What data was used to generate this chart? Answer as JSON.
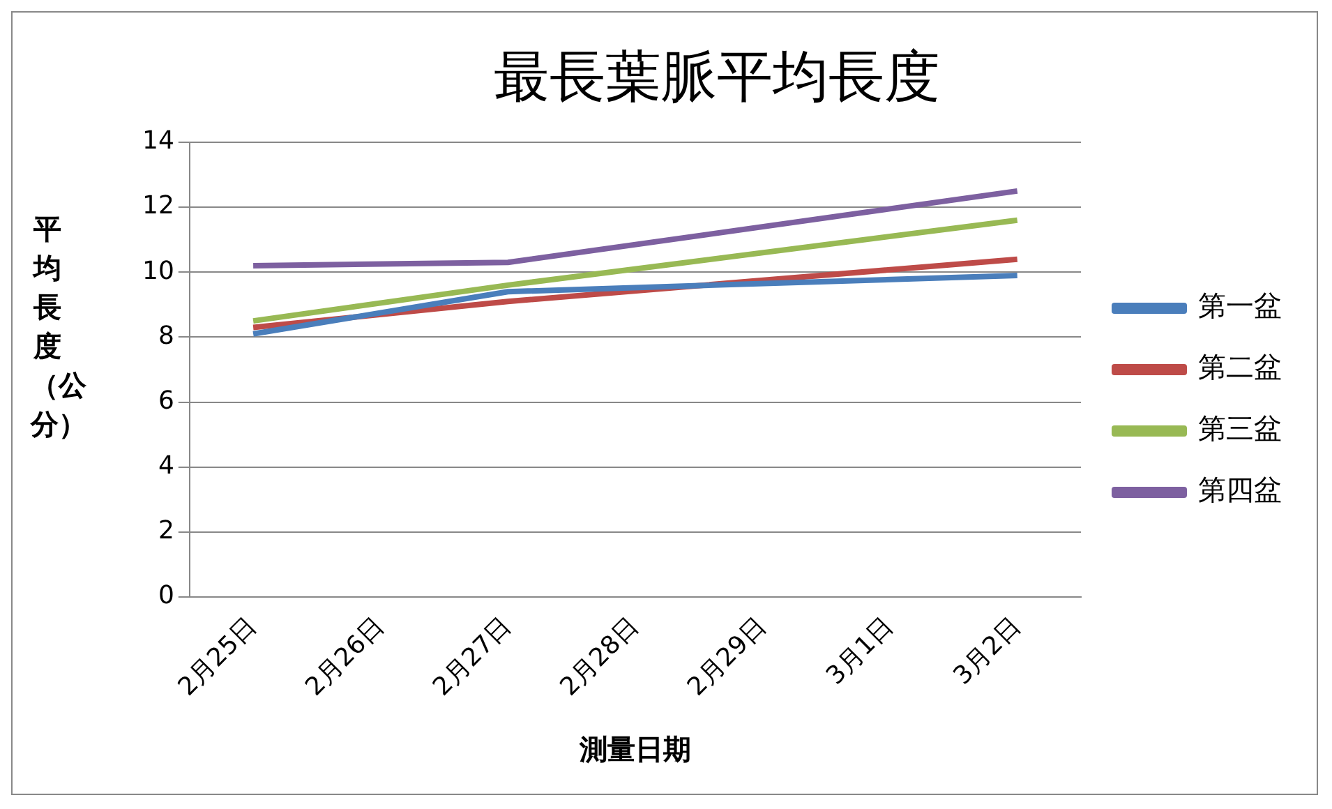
{
  "chart_data": {
    "type": "line",
    "title": "最長葉脈平均長度",
    "xlabel": "測量日期",
    "ylabel": "平均長度（公分）",
    "categories": [
      "2月25日",
      "2月26日",
      "2月27日",
      "2月28日",
      "2月29日",
      "3月1日",
      "3月2日"
    ],
    "series": [
      {
        "name": "第一盆",
        "color": "#4a7ebb",
        "values": [
          8.1,
          null,
          9.4,
          null,
          null,
          null,
          9.9
        ]
      },
      {
        "name": "第二盆",
        "color": "#be4b48",
        "values": [
          8.3,
          null,
          9.1,
          null,
          null,
          null,
          10.4
        ]
      },
      {
        "name": "第三盆",
        "color": "#98b954",
        "values": [
          8.5,
          null,
          9.6,
          null,
          null,
          null,
          11.6
        ]
      },
      {
        "name": "第四盆",
        "color": "#7d60a0",
        "values": [
          10.2,
          null,
          10.3,
          null,
          null,
          null,
          12.5
        ]
      }
    ],
    "ylim": [
      0,
      14
    ],
    "yticks": [
      0,
      2,
      4,
      6,
      8,
      10,
      12,
      14
    ],
    "grid": "y",
    "legend": "right",
    "marker": "none",
    "line_style": "solid"
  }
}
